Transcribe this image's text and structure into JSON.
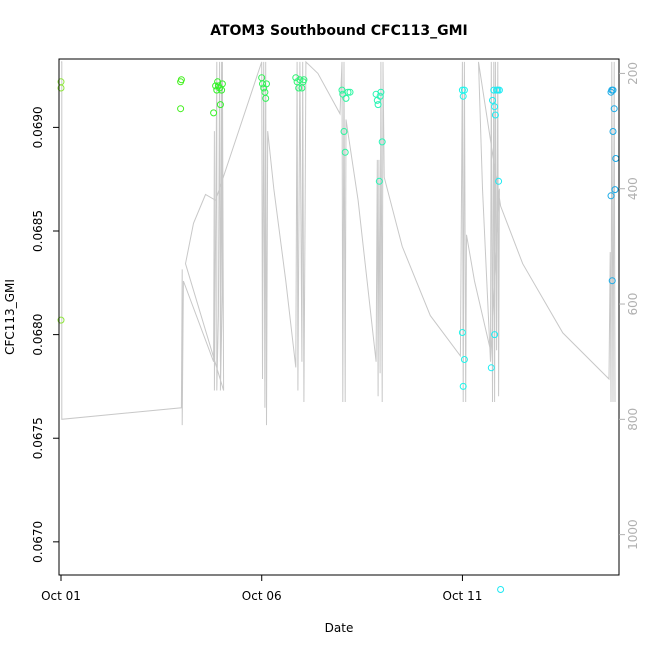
{
  "chart_data": {
    "type": "scatter",
    "title": "ATOM3 Southbound CFC113_GMI",
    "xlabel": "Date",
    "ylabel": "CFC113_GMI",
    "x_ticks": [
      {
        "day": 1,
        "label": "Oct 01"
      },
      {
        "day": 6,
        "label": "Oct 06"
      },
      {
        "day": 11,
        "label": "Oct 11"
      }
    ],
    "y_ticks": [
      0.067,
      0.0675,
      0.068,
      0.0685,
      0.069
    ],
    "y_tick_labels": [
      "0.0670",
      "0.0675",
      "0.0680",
      "0.0685",
      "0.0690"
    ],
    "xlim": [
      0.95,
      14.9
    ],
    "ylim": [
      0.06684,
      0.06933
    ],
    "right_axis": {
      "quantity": "pressure",
      "ticks": [
        200,
        400,
        600,
        800,
        1000
      ],
      "tick_labels": [
        "200",
        "400",
        "600",
        "800",
        "1000"
      ],
      "lim": [
        175,
        1070
      ],
      "reversed": true,
      "color": "#b0b0b0"
    },
    "colors": {
      "line": "#c8c8c8",
      "point_gradient": [
        "#8ee63a",
        "#37f21a",
        "#2af59a",
        "#1ef5f5",
        "#1aa8e6"
      ]
    },
    "series": [
      {
        "points": [
          {
            "x": 1.0,
            "y": 0.06922
          },
          {
            "x": 1.0,
            "y": 0.06919
          },
          {
            "x": 1.0,
            "y": 0.06807
          },
          {
            "x": 3.98,
            "y": 0.06922
          },
          {
            "x": 4.0,
            "y": 0.06923
          },
          {
            "x": 3.98,
            "y": 0.06909
          },
          {
            "x": 4.8,
            "y": 0.06907
          },
          {
            "x": 4.85,
            "y": 0.0692
          },
          {
            "x": 4.88,
            "y": 0.06918
          },
          {
            "x": 4.9,
            "y": 0.06922
          },
          {
            "x": 4.92,
            "y": 0.0692
          },
          {
            "x": 4.95,
            "y": 0.06919
          },
          {
            "x": 4.97,
            "y": 0.06911
          },
          {
            "x": 5.0,
            "y": 0.06918
          },
          {
            "x": 5.02,
            "y": 0.06921
          },
          {
            "x": 6.0,
            "y": 0.06924
          },
          {
            "x": 6.02,
            "y": 0.06921
          },
          {
            "x": 6.05,
            "y": 0.06919
          },
          {
            "x": 6.08,
            "y": 0.06917
          },
          {
            "x": 6.1,
            "y": 0.06914
          },
          {
            "x": 6.12,
            "y": 0.06921
          },
          {
            "x": 6.85,
            "y": 0.06924
          },
          {
            "x": 6.88,
            "y": 0.06922
          },
          {
            "x": 6.92,
            "y": 0.06919
          },
          {
            "x": 6.95,
            "y": 0.06923
          },
          {
            "x": 7.0,
            "y": 0.06919
          },
          {
            "x": 7.03,
            "y": 0.06922
          },
          {
            "x": 7.05,
            "y": 0.06923
          },
          {
            "x": 8.0,
            "y": 0.06918
          },
          {
            "x": 8.02,
            "y": 0.06916
          },
          {
            "x": 8.05,
            "y": 0.06898
          },
          {
            "x": 8.08,
            "y": 0.06888
          },
          {
            "x": 8.1,
            "y": 0.06914
          },
          {
            "x": 8.15,
            "y": 0.06917
          },
          {
            "x": 8.2,
            "y": 0.06917
          },
          {
            "x": 8.85,
            "y": 0.06916
          },
          {
            "x": 8.88,
            "y": 0.06913
          },
          {
            "x": 8.9,
            "y": 0.06911
          },
          {
            "x": 8.93,
            "y": 0.06874
          },
          {
            "x": 8.95,
            "y": 0.06915
          },
          {
            "x": 8.97,
            "y": 0.06917
          },
          {
            "x": 9.0,
            "y": 0.06893
          },
          {
            "x": 11.0,
            "y": 0.06918
          },
          {
            "x": 11.02,
            "y": 0.06915
          },
          {
            "x": 11.05,
            "y": 0.06918
          },
          {
            "x": 11.0,
            "y": 0.06801
          },
          {
            "x": 11.05,
            "y": 0.06788
          },
          {
            "x": 11.02,
            "y": 0.06775
          },
          {
            "x": 11.75,
            "y": 0.06913
          },
          {
            "x": 11.78,
            "y": 0.06918
          },
          {
            "x": 11.8,
            "y": 0.0691
          },
          {
            "x": 11.82,
            "y": 0.06906
          },
          {
            "x": 11.85,
            "y": 0.06918
          },
          {
            "x": 11.88,
            "y": 0.06918
          },
          {
            "x": 11.9,
            "y": 0.06874
          },
          {
            "x": 11.72,
            "y": 0.06784
          },
          {
            "x": 11.8,
            "y": 0.068
          },
          {
            "x": 11.92,
            "y": 0.06918
          },
          {
            "x": 11.95,
            "y": 0.06677
          },
          {
            "x": 14.7,
            "y": 0.06917
          },
          {
            "x": 14.72,
            "y": 0.06918
          },
          {
            "x": 14.75,
            "y": 0.06918
          },
          {
            "x": 14.78,
            "y": 0.06909
          },
          {
            "x": 14.75,
            "y": 0.06898
          },
          {
            "x": 14.82,
            "y": 0.06885
          },
          {
            "x": 14.8,
            "y": 0.0687
          },
          {
            "x": 14.7,
            "y": 0.06867
          },
          {
            "x": 14.73,
            "y": 0.06826
          }
        ]
      }
    ],
    "pressure_trace": [
      [
        1.0,
        180
      ],
      [
        1.02,
        180
      ],
      [
        1.02,
        800
      ],
      [
        4.0,
        780
      ],
      [
        4.02,
        540
      ],
      [
        4.02,
        810
      ],
      [
        4.05,
        560
      ],
      [
        4.8,
        700
      ],
      [
        4.82,
        300
      ],
      [
        4.82,
        750
      ],
      [
        4.85,
        480
      ],
      [
        4.88,
        180
      ],
      [
        4.88,
        750
      ],
      [
        4.92,
        620
      ],
      [
        4.95,
        180
      ],
      [
        4.97,
        700
      ],
      [
        5.0,
        450
      ],
      [
        5.0,
        180
      ],
      [
        4.97,
        750
      ],
      [
        5.02,
        580
      ],
      [
        5.02,
        180
      ],
      [
        5.05,
        750
      ],
      [
        4.1,
        530
      ],
      [
        4.3,
        460
      ],
      [
        4.6,
        410
      ],
      [
        4.85,
        420
      ],
      [
        6.0,
        180
      ],
      [
        6.02,
        730
      ],
      [
        6.05,
        180
      ],
      [
        6.08,
        780
      ],
      [
        6.1,
        180
      ],
      [
        6.12,
        810
      ],
      [
        6.15,
        300
      ],
      [
        6.3,
        400
      ],
      [
        6.6,
        560
      ],
      [
        6.85,
        710
      ],
      [
        6.88,
        180
      ],
      [
        6.9,
        750
      ],
      [
        6.95,
        180
      ],
      [
        7.0,
        700
      ],
      [
        7.02,
        180
      ],
      [
        7.05,
        770
      ],
      [
        7.08,
        440
      ],
      [
        7.1,
        180
      ],
      [
        7.4,
        200
      ],
      [
        7.95,
        270
      ],
      [
        8.0,
        180
      ],
      [
        8.02,
        770
      ],
      [
        8.05,
        180
      ],
      [
        8.08,
        770
      ],
      [
        8.1,
        280
      ],
      [
        8.4,
        420
      ],
      [
        8.85,
        700
      ],
      [
        8.88,
        350
      ],
      [
        8.9,
        760
      ],
      [
        8.92,
        350
      ],
      [
        8.95,
        720
      ],
      [
        8.97,
        180
      ],
      [
        9.0,
        770
      ],
      [
        9.02,
        180
      ],
      [
        9.05,
        380
      ],
      [
        9.5,
        500
      ],
      [
        10.2,
        620
      ],
      [
        10.95,
        690
      ],
      [
        11.0,
        180
      ],
      [
        11.02,
        770
      ],
      [
        11.05,
        180
      ],
      [
        11.08,
        770
      ],
      [
        11.1,
        480
      ],
      [
        11.3,
        560
      ],
      [
        11.7,
        680
      ],
      [
        11.72,
        180
      ],
      [
        11.75,
        770
      ],
      [
        11.78,
        180
      ],
      [
        11.8,
        770
      ],
      [
        11.82,
        180
      ],
      [
        11.85,
        680
      ],
      [
        11.88,
        180
      ],
      [
        11.9,
        760
      ],
      [
        11.92,
        400
      ],
      [
        11.7,
        700
      ],
      [
        11.5,
        400
      ],
      [
        11.4,
        180
      ],
      [
        11.95,
        430
      ],
      [
        12.5,
        530
      ],
      [
        13.5,
        650
      ],
      [
        14.65,
        730
      ],
      [
        14.68,
        510
      ],
      [
        14.7,
        770
      ],
      [
        14.72,
        180
      ],
      [
        14.75,
        770
      ],
      [
        14.78,
        180
      ],
      [
        14.8,
        770
      ]
    ]
  }
}
